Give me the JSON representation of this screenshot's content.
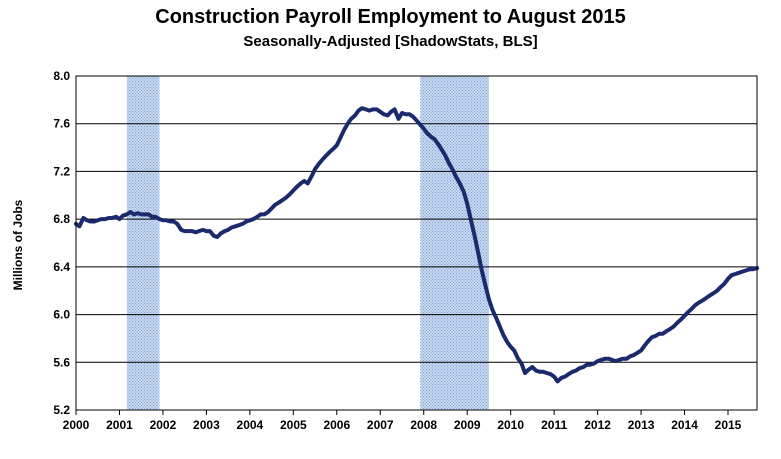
{
  "chart_data": {
    "type": "line",
    "title": "Construction Payroll Employment to August 2015",
    "subtitle": "Seasonally-Adjusted [ShadowStats, BLS]",
    "xlabel": "",
    "ylabel": "Millions of Jobs",
    "xlim": [
      2000.0,
      2015.667
    ],
    "ylim": [
      5.2,
      8.0
    ],
    "y_ticks": [
      "5.2",
      "5.6",
      "6.0",
      "6.4",
      "6.8",
      "7.2",
      "7.6",
      "8.0"
    ],
    "x_ticks": [
      "2000",
      "2001",
      "2002",
      "2003",
      "2004",
      "2005",
      "2006",
      "2007",
      "2008",
      "2009",
      "2010",
      "2011",
      "2012",
      "2013",
      "2014",
      "2015"
    ],
    "grid": "horizontal",
    "recessions": [
      [
        2001.17,
        2001.92
      ],
      [
        2007.92,
        2009.5
      ]
    ],
    "series": [
      {
        "color": "#1a2a6c",
        "points": [
          [
            2000.0,
            6.76
          ],
          [
            2000.08,
            6.74
          ],
          [
            2000.17,
            6.81
          ],
          [
            2000.25,
            6.79
          ],
          [
            2000.33,
            6.78
          ],
          [
            2000.42,
            6.78
          ],
          [
            2000.5,
            6.79
          ],
          [
            2000.58,
            6.8
          ],
          [
            2000.67,
            6.8
          ],
          [
            2000.75,
            6.81
          ],
          [
            2000.83,
            6.81
          ],
          [
            2000.92,
            6.82
          ],
          [
            2001.0,
            6.8
          ],
          [
            2001.08,
            6.83
          ],
          [
            2001.17,
            6.84
          ],
          [
            2001.25,
            6.86
          ],
          [
            2001.33,
            6.84
          ],
          [
            2001.42,
            6.85
          ],
          [
            2001.5,
            6.84
          ],
          [
            2001.58,
            6.84
          ],
          [
            2001.67,
            6.84
          ],
          [
            2001.75,
            6.82
          ],
          [
            2001.83,
            6.82
          ],
          [
            2001.92,
            6.8
          ],
          [
            2002.0,
            6.79
          ],
          [
            2002.08,
            6.79
          ],
          [
            2002.17,
            6.78
          ],
          [
            2002.25,
            6.78
          ],
          [
            2002.33,
            6.76
          ],
          [
            2002.42,
            6.71
          ],
          [
            2002.5,
            6.7
          ],
          [
            2002.58,
            6.7
          ],
          [
            2002.67,
            6.7
          ],
          [
            2002.75,
            6.69
          ],
          [
            2002.83,
            6.7
          ],
          [
            2002.92,
            6.71
          ],
          [
            2003.0,
            6.7
          ],
          [
            2003.08,
            6.7
          ],
          [
            2003.17,
            6.66
          ],
          [
            2003.25,
            6.65
          ],
          [
            2003.33,
            6.68
          ],
          [
            2003.42,
            6.7
          ],
          [
            2003.5,
            6.71
          ],
          [
            2003.58,
            6.73
          ],
          [
            2003.67,
            6.74
          ],
          [
            2003.75,
            6.75
          ],
          [
            2003.83,
            6.76
          ],
          [
            2003.92,
            6.78
          ],
          [
            2004.0,
            6.79
          ],
          [
            2004.08,
            6.8
          ],
          [
            2004.17,
            6.82
          ],
          [
            2004.25,
            6.84
          ],
          [
            2004.33,
            6.84
          ],
          [
            2004.42,
            6.86
          ],
          [
            2004.5,
            6.89
          ],
          [
            2004.58,
            6.92
          ],
          [
            2004.67,
            6.94
          ],
          [
            2004.75,
            6.96
          ],
          [
            2004.83,
            6.98
          ],
          [
            2004.92,
            7.01
          ],
          [
            2005.0,
            7.04
          ],
          [
            2005.08,
            7.07
          ],
          [
            2005.17,
            7.1
          ],
          [
            2005.25,
            7.12
          ],
          [
            2005.33,
            7.1
          ],
          [
            2005.42,
            7.16
          ],
          [
            2005.5,
            7.22
          ],
          [
            2005.58,
            7.26
          ],
          [
            2005.67,
            7.3
          ],
          [
            2005.75,
            7.33
          ],
          [
            2005.83,
            7.36
          ],
          [
            2005.92,
            7.39
          ],
          [
            2006.0,
            7.42
          ],
          [
            2006.08,
            7.48
          ],
          [
            2006.17,
            7.55
          ],
          [
            2006.25,
            7.6
          ],
          [
            2006.33,
            7.64
          ],
          [
            2006.42,
            7.67
          ],
          [
            2006.5,
            7.71
          ],
          [
            2006.58,
            7.73
          ],
          [
            2006.67,
            7.72
          ],
          [
            2006.75,
            7.71
          ],
          [
            2006.83,
            7.72
          ],
          [
            2006.92,
            7.72
          ],
          [
            2007.0,
            7.7
          ],
          [
            2007.08,
            7.68
          ],
          [
            2007.17,
            7.67
          ],
          [
            2007.25,
            7.7
          ],
          [
            2007.33,
            7.72
          ],
          [
            2007.42,
            7.64
          ],
          [
            2007.5,
            7.69
          ],
          [
            2007.58,
            7.68
          ],
          [
            2007.67,
            7.68
          ],
          [
            2007.75,
            7.66
          ],
          [
            2007.83,
            7.63
          ],
          [
            2007.92,
            7.59
          ],
          [
            2008.0,
            7.56
          ],
          [
            2008.08,
            7.52
          ],
          [
            2008.17,
            7.49
          ],
          [
            2008.25,
            7.47
          ],
          [
            2008.33,
            7.43
          ],
          [
            2008.42,
            7.38
          ],
          [
            2008.5,
            7.33
          ],
          [
            2008.58,
            7.27
          ],
          [
            2008.67,
            7.21
          ],
          [
            2008.75,
            7.15
          ],
          [
            2008.83,
            7.1
          ],
          [
            2008.92,
            7.03
          ],
          [
            2009.0,
            6.93
          ],
          [
            2009.08,
            6.8
          ],
          [
            2009.17,
            6.66
          ],
          [
            2009.25,
            6.52
          ],
          [
            2009.33,
            6.38
          ],
          [
            2009.42,
            6.24
          ],
          [
            2009.5,
            6.13
          ],
          [
            2009.58,
            6.04
          ],
          [
            2009.67,
            5.97
          ],
          [
            2009.75,
            5.9
          ],
          [
            2009.83,
            5.83
          ],
          [
            2009.92,
            5.77
          ],
          [
            2010.0,
            5.73
          ],
          [
            2010.08,
            5.7
          ],
          [
            2010.17,
            5.63
          ],
          [
            2010.25,
            5.59
          ],
          [
            2010.33,
            5.51
          ],
          [
            2010.42,
            5.54
          ],
          [
            2010.5,
            5.56
          ],
          [
            2010.58,
            5.53
          ],
          [
            2010.67,
            5.52
          ],
          [
            2010.75,
            5.52
          ],
          [
            2010.83,
            5.51
          ],
          [
            2010.92,
            5.5
          ],
          [
            2011.0,
            5.48
          ],
          [
            2011.08,
            5.44
          ],
          [
            2011.17,
            5.47
          ],
          [
            2011.25,
            5.48
          ],
          [
            2011.33,
            5.5
          ],
          [
            2011.42,
            5.52
          ],
          [
            2011.5,
            5.53
          ],
          [
            2011.58,
            5.55
          ],
          [
            2011.67,
            5.56
          ],
          [
            2011.75,
            5.58
          ],
          [
            2011.83,
            5.58
          ],
          [
            2011.92,
            5.59
          ],
          [
            2012.0,
            5.61
          ],
          [
            2012.08,
            5.62
          ],
          [
            2012.17,
            5.63
          ],
          [
            2012.25,
            5.63
          ],
          [
            2012.33,
            5.62
          ],
          [
            2012.42,
            5.61
          ],
          [
            2012.5,
            5.62
          ],
          [
            2012.58,
            5.63
          ],
          [
            2012.67,
            5.63
          ],
          [
            2012.75,
            5.65
          ],
          [
            2012.83,
            5.66
          ],
          [
            2012.92,
            5.68
          ],
          [
            2013.0,
            5.7
          ],
          [
            2013.08,
            5.74
          ],
          [
            2013.17,
            5.78
          ],
          [
            2013.25,
            5.81
          ],
          [
            2013.33,
            5.82
          ],
          [
            2013.42,
            5.84
          ],
          [
            2013.5,
            5.84
          ],
          [
            2013.58,
            5.86
          ],
          [
            2013.67,
            5.88
          ],
          [
            2013.75,
            5.9
          ],
          [
            2013.83,
            5.93
          ],
          [
            2013.92,
            5.96
          ],
          [
            2014.0,
            5.99
          ],
          [
            2014.08,
            6.02
          ],
          [
            2014.17,
            6.05
          ],
          [
            2014.25,
            6.08
          ],
          [
            2014.33,
            6.1
          ],
          [
            2014.42,
            6.12
          ],
          [
            2014.5,
            6.14
          ],
          [
            2014.58,
            6.16
          ],
          [
            2014.67,
            6.18
          ],
          [
            2014.75,
            6.2
          ],
          [
            2014.83,
            6.23
          ],
          [
            2014.92,
            6.26
          ],
          [
            2015.0,
            6.3
          ],
          [
            2015.08,
            6.33
          ],
          [
            2015.17,
            6.34
          ],
          [
            2015.25,
            6.35
          ],
          [
            2015.33,
            6.36
          ],
          [
            2015.42,
            6.37
          ],
          [
            2015.5,
            6.38
          ],
          [
            2015.58,
            6.38
          ],
          [
            2015.67,
            6.39
          ]
        ]
      }
    ]
  }
}
